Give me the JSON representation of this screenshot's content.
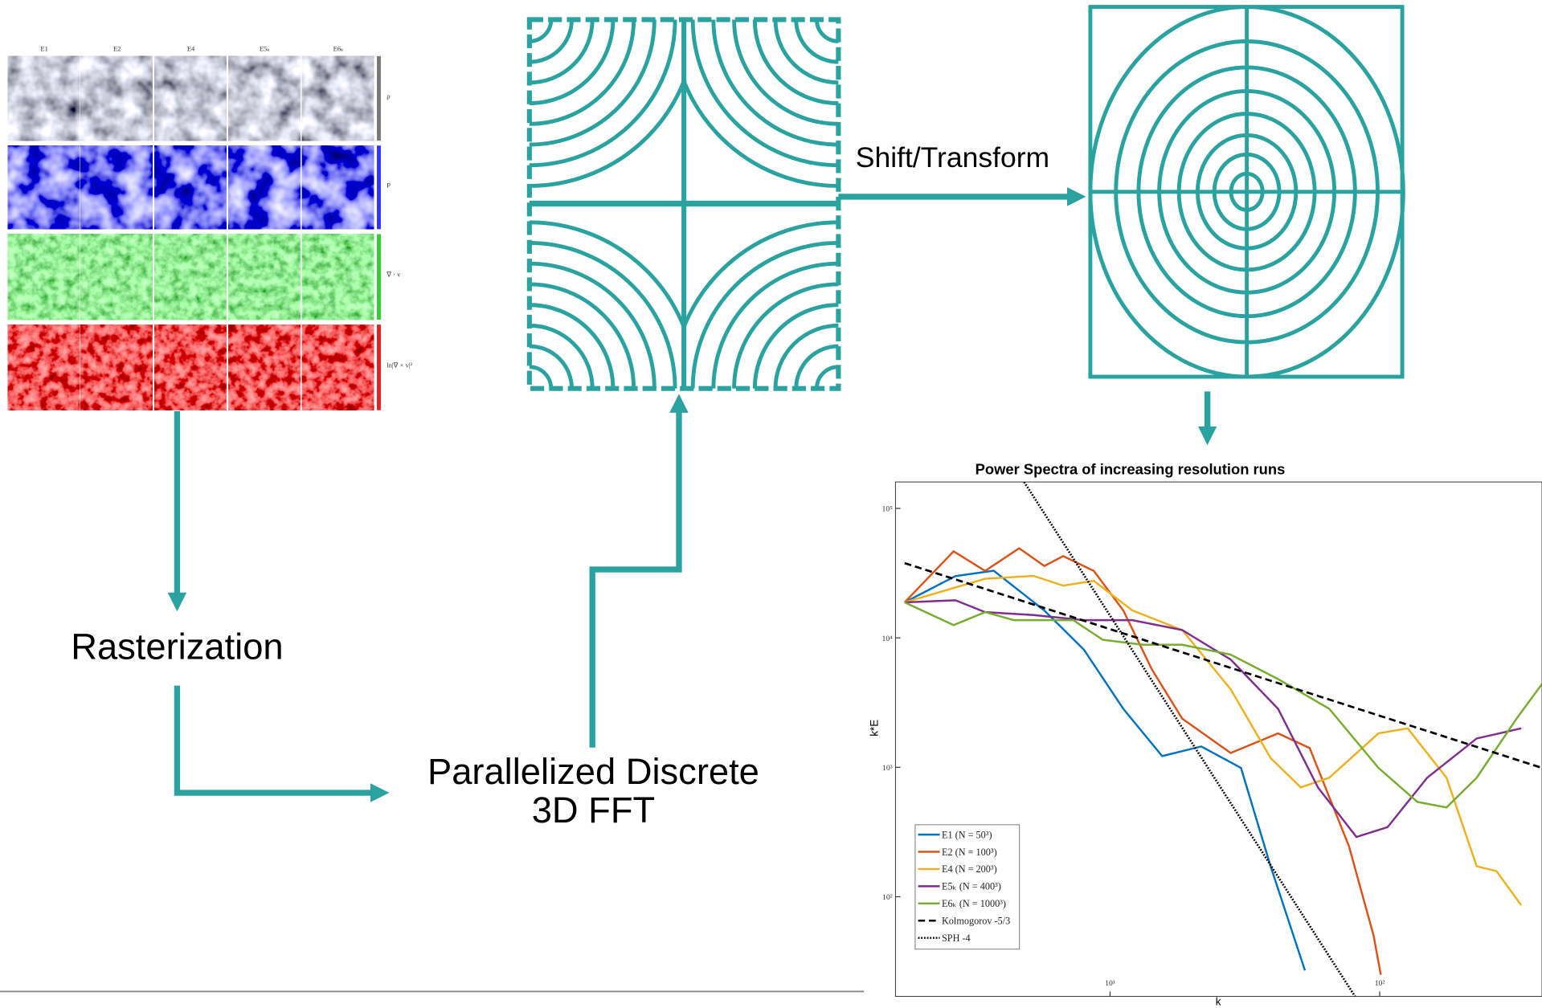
{
  "panels": {
    "columns": [
      "E1",
      "E2",
      "E4",
      "E5ₖ",
      "E6ₖ"
    ],
    "rows": [
      "ρ",
      "P",
      "∇ · v",
      "ln|∇ × v|²"
    ]
  },
  "nodes": {
    "rasterization": "Rasterization",
    "fft": [
      "Parallelized Discrete",
      "3D FFT"
    ],
    "shift": "Shift/Transform"
  },
  "chart_data": {
    "type": "line",
    "title": "Power Spectra of increasing resolution runs",
    "x_label": "k",
    "y_label": "k*E",
    "xscale": "log",
    "yscale": "log",
    "xlim": [
      1.6,
      400
    ],
    "ylim": [
      17,
      160000
    ],
    "xticks": [
      {
        "value": 10,
        "label": "10¹"
      },
      {
        "value": 100,
        "label": "10²"
      }
    ],
    "yticks": [
      {
        "value": 100,
        "label": "10²"
      },
      {
        "value": 1000,
        "label": "10³"
      },
      {
        "value": 10000,
        "label": "10⁴"
      },
      {
        "value": 100000,
        "label": "10⁵"
      }
    ],
    "legend": "lower left",
    "series": [
      {
        "name": "E1 (N = 50³)",
        "color": "#0072bd",
        "style": "solid",
        "x": [
          1.73,
          2.67,
          3.7,
          5.7,
          8.0,
          11.2,
          15.6,
          21.8,
          30.6,
          39.4,
          52.8
        ],
        "values": [
          18800,
          30000,
          33000,
          16300,
          8100,
          2830,
          1220,
          1450,
          990,
          172,
          27
        ]
      },
      {
        "name": "E2 (N = 100³)",
        "color": "#d95319",
        "style": "solid",
        "x": [
          1.73,
          2.63,
          3.44,
          4.6,
          5.7,
          6.7,
          8.7,
          11.2,
          14.3,
          18.5,
          28,
          42,
          55,
          77,
          95,
          101
        ],
        "values": [
          18800,
          46600,
          32900,
          49200,
          35900,
          42800,
          32900,
          16300,
          5700,
          2380,
          1290,
          1830,
          1410,
          245,
          50,
          25
        ]
      },
      {
        "name": "E4 (N = 200³)",
        "color": "#edb120",
        "style": "solid",
        "x": [
          1.73,
          3.44,
          5.2,
          6.7,
          8.7,
          12.1,
          18.5,
          28,
          39.4,
          51,
          65,
          99,
          127,
          177,
          229,
          271,
          335
        ],
        "values": [
          18800,
          28600,
          30100,
          25300,
          27600,
          16300,
          11500,
          4010,
          1180,
          700,
          830,
          1830,
          2000,
          830,
          172,
          158,
          86
        ]
      },
      {
        "name": "E5ₖ (N = 400³)",
        "color": "#7e2f8e",
        "style": "solid",
        "x": [
          1.73,
          2.67,
          3.44,
          5.2,
          8.0,
          12.1,
          18.5,
          28,
          42,
          59,
          82,
          107,
          150,
          229,
          335
        ],
        "values": [
          18800,
          19500,
          15800,
          15000,
          13700,
          13700,
          11500,
          6800,
          2830,
          700,
          290,
          345,
          830,
          1670,
          2000
        ]
      },
      {
        "name": "E6ₖ (N = 1000³)",
        "color": "#77ac30",
        "style": "solid",
        "x": [
          1.73,
          2.63,
          3.44,
          4.4,
          7.3,
          9.4,
          13.2,
          18.5,
          28,
          42,
          65,
          99,
          138,
          177,
          229,
          322,
          400
        ],
        "values": [
          18800,
          12560,
          15800,
          13700,
          13700,
          9650,
          8850,
          8850,
          7430,
          4800,
          2830,
          990,
          540,
          490,
          830,
          2380,
          4400
        ]
      },
      {
        "name": "Kolmogorov -5/3",
        "color": "#000000",
        "style": "dashed",
        "x": [
          1.73,
          400
        ],
        "values": [
          37800,
          990
        ]
      },
      {
        "name": "SPH -4",
        "color": "#000000",
        "style": "dotted",
        "x": [
          4.8,
          81
        ],
        "values": [
          160000,
          17
        ]
      }
    ]
  }
}
